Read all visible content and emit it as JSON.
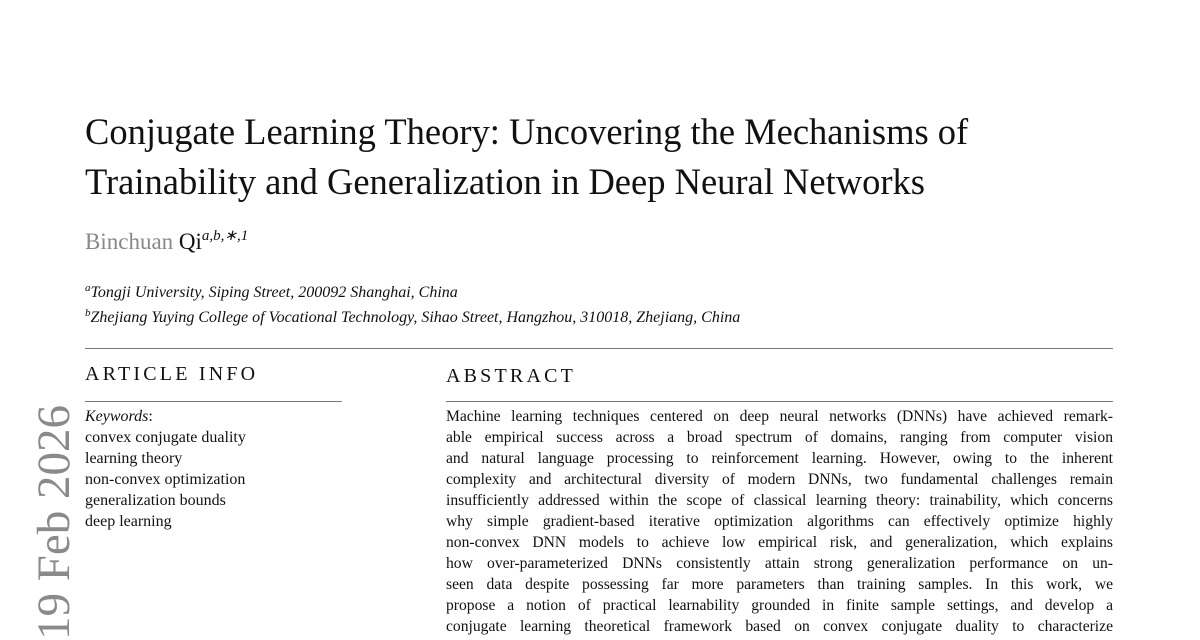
{
  "header": {
    "title_lines": [
      "Conjugate Learning Theory: Uncovering the Mechanisms of",
      "Trainability and Generalization in Deep Neural Networks"
    ],
    "author": {
      "given": "Binchuan",
      "family": "Qi",
      "marks": "a,b,∗,1"
    },
    "affiliations": [
      {
        "mark": "a",
        "text": "Tongji University, Siping Street, 200092 Shanghai, China"
      },
      {
        "mark": "b",
        "text": "Zhejiang Yuying College of Vocational Technology, Sihao Street, Hangzhou, 310018, Zhejiang, China"
      }
    ]
  },
  "article_info": {
    "heading": "ARTICLE INFO",
    "keywords_label": "Keywords",
    "keywords_colon": ":",
    "keywords": [
      "convex conjugate duality",
      "learning theory",
      "non-convex optimization",
      "generalization bounds",
      "deep learning"
    ]
  },
  "abstract": {
    "heading": "ABSTRACT",
    "lines": [
      "Machine learning techniques centered on deep neural networks (DNNs) have achieved remark-",
      "able empirical success across a broad spectrum of domains, ranging from computer vision",
      "and natural language processing to reinforcement learning. However, owing to the inherent",
      "complexity and architectural diversity of modern DNNs, two fundamental challenges remain",
      "insufficiently addressed within the scope of classical learning theory: trainability, which concerns",
      "why simple gradient-based iterative optimization algorithms can effectively optimize highly",
      "non-convex DNN models to achieve low empirical risk, and generalization, which explains",
      "how over-parameterized DNNs consistently attain strong generalization performance on un-",
      "seen data despite possessing far more parameters than training samples. In this work, we",
      "propose a notion of practical learnability grounded in finite sample settings, and develop a",
      "conjugate learning theoretical framework based on convex conjugate duality to characterize"
    ]
  },
  "side_stamp": "19 Feb 2026"
}
